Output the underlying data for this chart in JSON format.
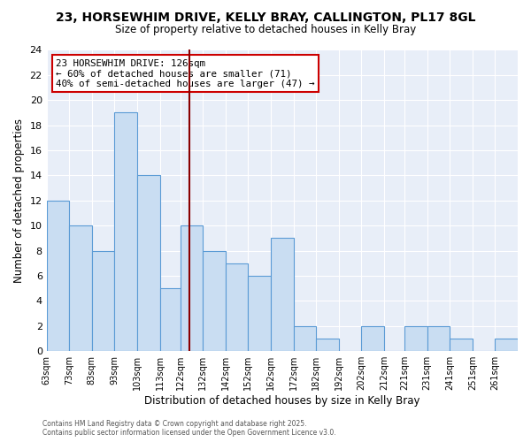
{
  "title": "23, HORSEWHIM DRIVE, KELLY BRAY, CALLINGTON, PL17 8GL",
  "subtitle": "Size of property relative to detached houses in Kelly Bray",
  "xlabel": "Distribution of detached houses by size in Kelly Bray",
  "ylabel": "Number of detached properties",
  "bin_labels": [
    "63sqm",
    "73sqm",
    "83sqm",
    "93sqm",
    "103sqm",
    "113sqm",
    "122sqm",
    "132sqm",
    "142sqm",
    "152sqm",
    "162sqm",
    "172sqm",
    "182sqm",
    "192sqm",
    "202sqm",
    "212sqm",
    "221sqm",
    "231sqm",
    "241sqm",
    "251sqm",
    "261sqm"
  ],
  "bar_heights": [
    12,
    10,
    8,
    19,
    14,
    5,
    10,
    8,
    7,
    6,
    9,
    2,
    1,
    0,
    2,
    0,
    2,
    2,
    1,
    0,
    1
  ],
  "bin_edges": [
    63,
    73,
    83,
    93,
    103,
    113,
    122,
    132,
    142,
    152,
    162,
    172,
    182,
    192,
    202,
    212,
    221,
    231,
    241,
    251,
    261,
    271
  ],
  "bar_color": "#c9ddf2",
  "bar_edgecolor": "#5b9bd5",
  "reference_line_x": 126,
  "reference_line_color": "#8b0000",
  "ylim": [
    0,
    24
  ],
  "yticks": [
    0,
    2,
    4,
    6,
    8,
    10,
    12,
    14,
    16,
    18,
    20,
    22,
    24
  ],
  "annotation_title": "23 HORSEWHIM DRIVE: 126sqm",
  "annotation_line1": "← 60% of detached houses are smaller (71)",
  "annotation_line2": "40% of semi-detached houses are larger (47) →",
  "annotation_box_edgecolor": "#cc0000",
  "plot_bg_color": "#e8eef8",
  "fig_bg_color": "#ffffff",
  "grid_color": "#ffffff",
  "footer1": "Contains HM Land Registry data © Crown copyright and database right 2025.",
  "footer2": "Contains public sector information licensed under the Open Government Licence v3.0."
}
